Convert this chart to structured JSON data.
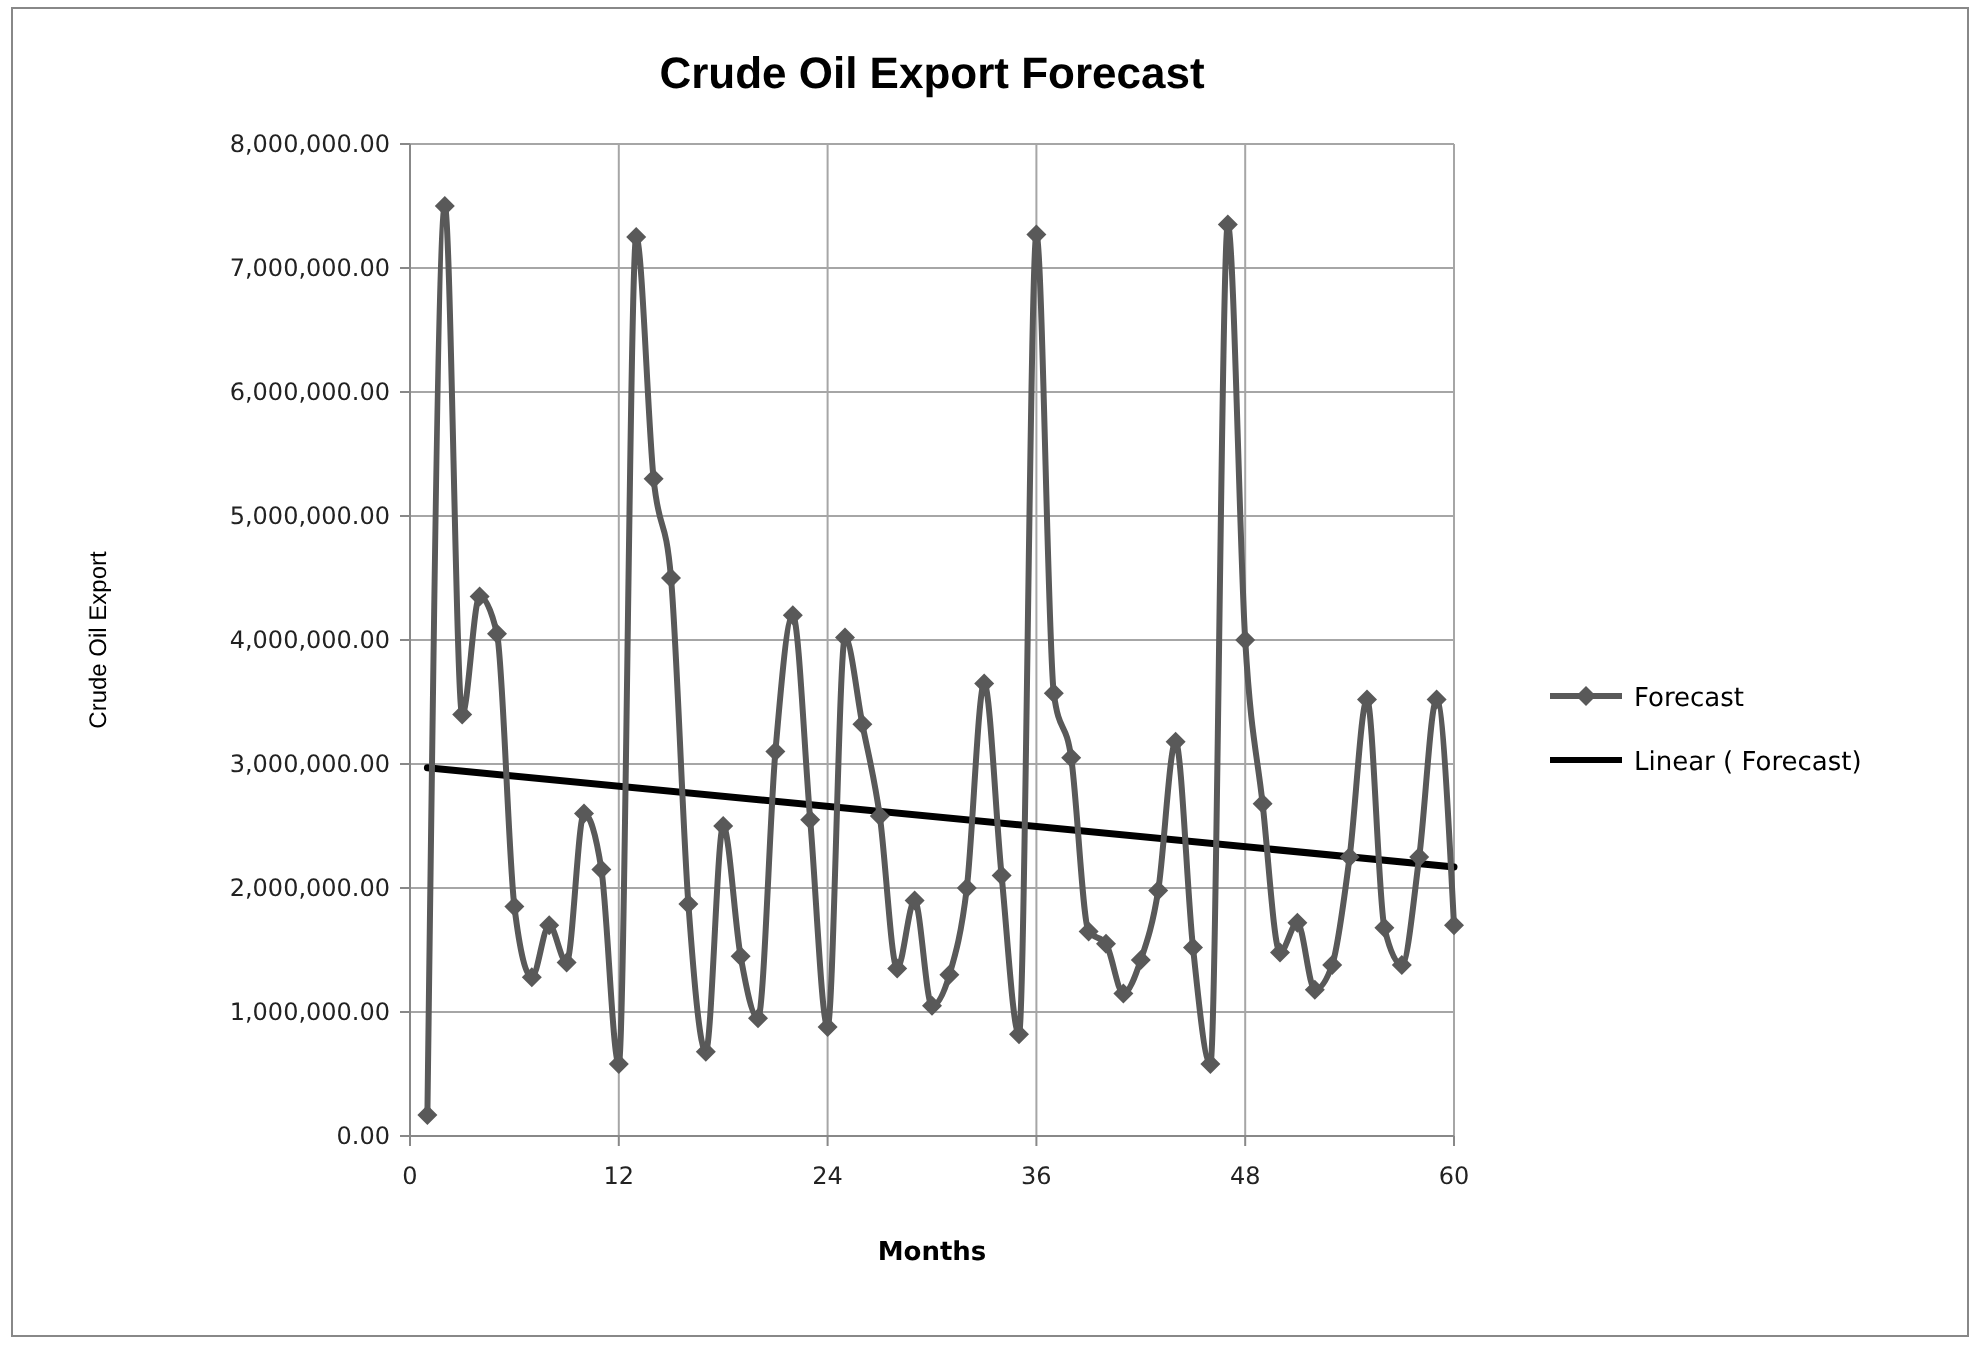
{
  "chart_data": {
    "type": "line",
    "title": "Crude Oil Export Forecast",
    "xlabel": "Months",
    "ylabel": "Crude Oil Export",
    "xlim": [
      0,
      60
    ],
    "xticks": [
      0,
      12,
      24,
      36,
      48,
      60
    ],
    "ylim": [
      0,
      8000000
    ],
    "yticks": [
      {
        "value": 0,
        "label": "0.00"
      },
      {
        "value": 1000000,
        "label": "1,000,000.00"
      },
      {
        "value": 2000000,
        "label": "2,000,000.00"
      },
      {
        "value": 3000000,
        "label": "3,000,000.00"
      },
      {
        "value": 4000000,
        "label": "4,000,000.00"
      },
      {
        "value": 5000000,
        "label": "5,000,000.00"
      },
      {
        "value": 6000000,
        "label": "6,000,000.00"
      },
      {
        "value": 7000000,
        "label": "7,000,000.00"
      },
      {
        "value": 8000000,
        "label": "8,000,000.00"
      }
    ],
    "grid": true,
    "legend": "right",
    "series": [
      {
        "name": "Forecast",
        "color": "#595959",
        "marker": "diamond",
        "x": [
          1,
          2,
          3,
          4,
          5,
          6,
          7,
          8,
          9,
          10,
          11,
          12,
          13,
          14,
          15,
          16,
          17,
          18,
          19,
          20,
          21,
          22,
          23,
          24,
          25,
          26,
          27,
          28,
          29,
          30,
          31,
          32,
          33,
          34,
          35,
          36,
          37,
          38,
          39,
          40,
          41,
          42,
          43,
          44,
          45,
          46,
          47,
          48,
          49,
          50,
          51,
          52,
          53,
          54,
          55,
          56,
          57,
          58,
          59,
          60
        ],
        "values": [
          170000,
          7500000,
          3400000,
          4350000,
          4050000,
          1850000,
          1280000,
          1700000,
          1400000,
          2600000,
          2150000,
          580000,
          7250000,
          5300000,
          4500000,
          1870000,
          680000,
          2500000,
          1450000,
          950000,
          3100000,
          4200000,
          2550000,
          880000,
          4020000,
          3320000,
          2580000,
          1350000,
          1900000,
          1050000,
          1300000,
          2000000,
          3650000,
          2100000,
          820000,
          7270000,
          3570000,
          3050000,
          1650000,
          1550000,
          1150000,
          1420000,
          1980000,
          3180000,
          1520000,
          580000,
          7350000,
          4000000,
          2680000,
          1480000,
          1720000,
          1180000,
          1380000,
          2250000,
          3520000,
          1680000,
          1380000,
          2250000,
          3520000,
          1700000
        ]
      },
      {
        "name": "Linear ( Forecast)",
        "color": "#000000",
        "marker": "none",
        "x": [
          1,
          60
        ],
        "values": [
          2970000,
          2170000
        ]
      }
    ]
  }
}
